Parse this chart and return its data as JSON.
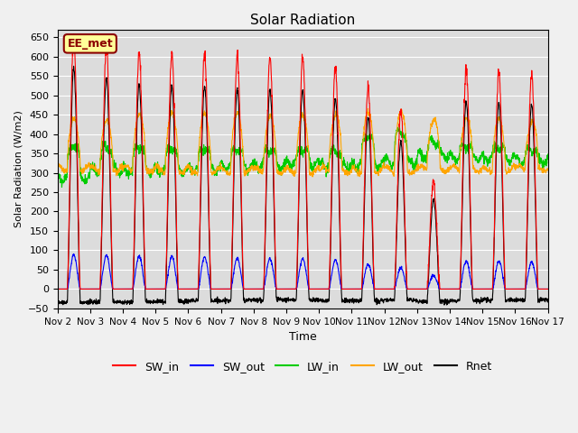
{
  "title": "Solar Radiation",
  "ylabel": "Solar Radiation (W/m2)",
  "xlabel": "Time",
  "ylim": [
    -50,
    670
  ],
  "yticks": [
    -50,
    0,
    50,
    100,
    150,
    200,
    250,
    300,
    350,
    400,
    450,
    500,
    550,
    600,
    650
  ],
  "xtick_labels": [
    "Nov 2",
    "Nov 3",
    "Nov 4",
    "Nov 5",
    "Nov 6",
    "Nov 7",
    "Nov 8",
    "Nov 9",
    "Nov 10",
    "Nov 11",
    "Nov 12",
    "Nov 13",
    "Nov 14",
    "Nov 15",
    "Nov 16",
    "Nov 17"
  ],
  "legend_labels": [
    "SW_in",
    "SW_out",
    "LW_in",
    "LW_out",
    "Rnet"
  ],
  "legend_colors": [
    "#ff0000",
    "#0000ff",
    "#00cc00",
    "#ffa500",
    "#000000"
  ],
  "watermark": "EE_met",
  "watermark_color": "#8b0000",
  "watermark_bg": "#ffff99",
  "background_color": "#dcdcdc",
  "fig_bg_color": "#f0f0f0",
  "grid_color": "#ffffff",
  "n_days": 15,
  "pts_per_day": 144,
  "SW_in_peaks": [
    650,
    625,
    610,
    606,
    603,
    600,
    598,
    595,
    575,
    520,
    456,
    275,
    565,
    560,
    555
  ],
  "SW_out_peaks": [
    88,
    87,
    85,
    83,
    82,
    80,
    79,
    78,
    75,
    65,
    55,
    35,
    72,
    72,
    70
  ],
  "LW_in_base": [
    285,
    308,
    305,
    308,
    310,
    315,
    320,
    325,
    318,
    322,
    328,
    345,
    340,
    338,
    330
  ],
  "LW_in_peak": [
    375,
    368,
    370,
    366,
    366,
    363,
    362,
    362,
    360,
    398,
    412,
    382,
    372,
    367,
    362
  ],
  "LW_out_base": [
    312,
    310,
    310,
    308,
    306,
    306,
    306,
    306,
    306,
    306,
    306,
    310,
    310,
    310,
    310
  ],
  "LW_out_peak": [
    432,
    432,
    447,
    447,
    447,
    447,
    442,
    442,
    447,
    447,
    452,
    434,
    437,
    432,
    432
  ],
  "Rnet_night": [
    -35,
    -33,
    -33,
    -32,
    -30,
    -30,
    -28,
    -28,
    -30,
    -30,
    -28,
    -32,
    -30,
    -28,
    -28
  ],
  "Rnet_peak": [
    570,
    545,
    528,
    524,
    522,
    518,
    515,
    513,
    490,
    445,
    380,
    230,
    485,
    480,
    475
  ]
}
